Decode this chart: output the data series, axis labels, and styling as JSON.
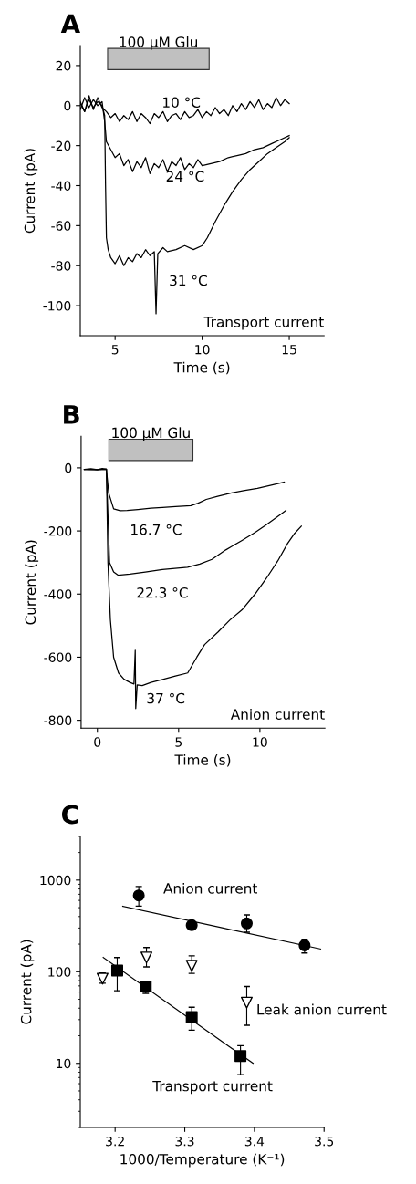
{
  "chart_data": [
    {
      "type": "line",
      "title": "A",
      "xlabel": "Time (s)",
      "ylabel": "Current (pA)",
      "xlim": [
        3,
        17
      ],
      "ylim": [
        -115,
        30
      ],
      "xticks": [
        5,
        10,
        15
      ],
      "yticks": [
        -100,
        -80,
        -60,
        -40,
        -20,
        0,
        20
      ],
      "grid": false,
      "legend": false,
      "marker": "none",
      "line_style": "solid",
      "bands": [
        {
          "axis": "x",
          "from": 4.57,
          "to": 10.4,
          "label": "100 µM Glu",
          "color": "#c0c0c0"
        }
      ],
      "annotations": [
        "Transport current"
      ],
      "series": [
        {
          "name": "10 °C",
          "color": "#000000",
          "x": [
            3.0,
            3.25,
            3.5,
            3.75,
            4.0,
            4.25,
            4.5,
            4.75,
            5.0,
            5.25,
            5.5,
            5.75,
            6.0,
            6.25,
            6.5,
            6.75,
            7.0,
            7.25,
            7.5,
            7.75,
            8.0,
            8.25,
            8.5,
            8.75,
            9.0,
            9.25,
            9.5,
            9.75,
            10.0,
            10.25,
            10.5,
            10.75,
            11.0,
            11.25,
            11.5,
            11.75,
            12.0,
            12.25,
            12.5,
            12.75,
            13.0,
            13.25,
            13.5,
            13.75,
            14.0,
            14.25,
            14.5,
            14.75,
            15.0
          ],
          "values": [
            2,
            -3,
            5,
            -2,
            4,
            -1,
            -3,
            -6,
            -4,
            -8,
            -5,
            -7,
            -3,
            -8,
            -4,
            -6,
            -9,
            -4,
            -6,
            -3,
            -8,
            -5,
            -4,
            -7,
            -3,
            -6,
            -5,
            -2,
            -6,
            -3,
            -5,
            -1,
            -4,
            -2,
            -5,
            0,
            -3,
            1,
            -2,
            2,
            -1,
            3,
            -2,
            1,
            -1,
            4,
            0,
            3,
            1
          ]
        },
        {
          "name": "24 °C",
          "color": "#000000",
          "x": [
            3.0,
            3.25,
            3.5,
            3.75,
            4.0,
            4.25,
            4.4,
            4.5,
            4.75,
            5.0,
            5.25,
            5.5,
            5.75,
            6.0,
            6.25,
            6.5,
            6.75,
            7.0,
            7.25,
            7.5,
            7.75,
            8.0,
            8.25,
            8.5,
            8.75,
            9.0,
            9.25,
            9.5,
            9.75,
            10.0,
            10.5,
            11.0,
            11.5,
            12.0,
            12.5,
            13.0,
            13.5,
            14.0,
            14.5,
            15.0
          ],
          "values": [
            -2,
            4,
            -1,
            3,
            0,
            2,
            -8,
            -18,
            -22,
            -26,
            -24,
            -30,
            -27,
            -33,
            -28,
            -31,
            -26,
            -34,
            -29,
            -31,
            -27,
            -33,
            -28,
            -30,
            -26,
            -32,
            -29,
            -31,
            -27,
            -30,
            -29,
            -28,
            -26,
            -25,
            -24,
            -22,
            -21,
            -19,
            -17,
            -15
          ]
        },
        {
          "name": "31 °C",
          "color": "#000000",
          "x": [
            3.0,
            3.25,
            3.5,
            3.75,
            4.0,
            4.25,
            4.4,
            4.45,
            4.5,
            4.6,
            4.75,
            5.0,
            5.25,
            5.5,
            5.75,
            6.0,
            6.25,
            6.5,
            6.75,
            7.0,
            7.25,
            7.35,
            7.45,
            7.75,
            8.0,
            8.5,
            9.0,
            9.5,
            10.0,
            10.3,
            10.75,
            11.25,
            11.75,
            12.25,
            12.75,
            13.25,
            13.75,
            14.25,
            14.75,
            15.0
          ],
          "values": [
            1,
            -3,
            3,
            -1,
            2,
            0,
            -5,
            -40,
            -66,
            -72,
            -76,
            -79,
            -75,
            -80,
            -76,
            -78,
            -74,
            -76,
            -72,
            -75,
            -73,
            -104,
            -74,
            -71,
            -73,
            -72,
            -70,
            -72,
            -70,
            -66,
            -58,
            -50,
            -43,
            -37,
            -32,
            -28,
            -24,
            -21,
            -18,
            -16
          ]
        }
      ]
    },
    {
      "type": "line",
      "title": "B",
      "xlabel": "Time (s)",
      "ylabel": "Current (pA)",
      "xlim": [
        -1,
        14
      ],
      "ylim": [
        -825,
        100
      ],
      "xticks": [
        0,
        5,
        10
      ],
      "yticks": [
        -800,
        -600,
        -400,
        -200,
        0
      ],
      "grid": false,
      "legend": false,
      "marker": "none",
      "line_style": "solid",
      "bands": [
        {
          "axis": "x",
          "from": 0.71,
          "to": 5.88,
          "label": "100 µM Glu",
          "color": "#c0c0c0"
        }
      ],
      "annotations": [
        "Anion current"
      ],
      "series": [
        {
          "name": "16.7 °C",
          "color": "#000000",
          "x": [
            -0.8,
            -0.4,
            0,
            0.3,
            0.55,
            0.7,
            1.0,
            1.4,
            1.83,
            2.5,
            3.3,
            4.0,
            4.8,
            5.75,
            6.2,
            6.7,
            7.4,
            8.2,
            9.0,
            9.85,
            10.7,
            11.5
          ],
          "values": [
            -5,
            -3,
            -6,
            -2,
            -4,
            -80,
            -130,
            -136,
            -135,
            -132,
            -128,
            -126,
            -123,
            -120,
            -112,
            -100,
            -90,
            -80,
            -72,
            -65,
            -55,
            -45
          ]
        },
        {
          "name": "22.3 °C",
          "color": "#000000",
          "x": [
            -0.8,
            0,
            0.55,
            0.65,
            0.75,
            1.0,
            1.27,
            2.0,
            2.95,
            4.0,
            5.55,
            6.3,
            7.05,
            7.9,
            8.9,
            9.7,
            10.4,
            11.0,
            11.6
          ],
          "values": [
            -5,
            -6,
            -4,
            -150,
            -300,
            -330,
            -340,
            -337,
            -330,
            -322,
            -315,
            -305,
            -290,
            -260,
            -230,
            -205,
            -180,
            -158,
            -135
          ]
        },
        {
          "name": "37 °C",
          "color": "#000000",
          "x": [
            -0.8,
            0,
            0.56,
            0.65,
            0.8,
            1.0,
            1.3,
            1.64,
            2.0,
            2.25,
            2.33,
            2.36,
            2.45,
            2.76,
            3.3,
            4.07,
            4.8,
            5.56,
            6.12,
            6.6,
            7.43,
            8.2,
            8.9,
            9.7,
            10.4,
            11.1,
            11.7,
            12.1,
            12.55
          ],
          "values": [
            -5,
            -6,
            -4,
            -300,
            -480,
            -600,
            -650,
            -670,
            -680,
            -685,
            -578,
            -763,
            -688,
            -690,
            -680,
            -670,
            -660,
            -650,
            -600,
            -560,
            -520,
            -480,
            -450,
            -400,
            -350,
            -295,
            -240,
            -210,
            -185
          ]
        }
      ]
    },
    {
      "type": "scatter",
      "title": "C",
      "xlabel": "1000/Temperature (K⁻¹)",
      "ylabel": "Current (pA)",
      "xlim": [
        3.15,
        3.5
      ],
      "ylim": [
        2,
        3000
      ],
      "xticks": [
        3.2,
        3.3,
        3.4,
        3.5
      ],
      "yticks": [
        10,
        100,
        1000
      ],
      "log": "y",
      "grid": false,
      "legend": false,
      "series": [
        {
          "name": "Anion current",
          "type": "scatter",
          "marker": "circle",
          "color": "#000000",
          "x": [
            3.234,
            3.31,
            3.389,
            3.472
          ],
          "values": [
            680,
            322,
            337,
            194
          ],
          "errors": [
            [
              520,
              850
            ],
            [
              290,
              360
            ],
            [
              270,
              417
            ],
            [
              160,
              226
            ]
          ]
        },
        {
          "name": "Transport current",
          "type": "scatter",
          "marker": "square",
          "color": "#000000",
          "x": [
            3.203,
            3.244,
            3.31,
            3.38
          ],
          "values": [
            103,
            69,
            32,
            12
          ],
          "errors": [
            [
              62,
              143
            ],
            [
              58,
              79
            ],
            [
              23,
              41
            ],
            [
              7.5,
              15.6
            ]
          ]
        },
        {
          "name": "Leak anion current",
          "type": "scatter",
          "marker": "triangle",
          "color": "#000000",
          "x": [
            3.182,
            3.245,
            3.31,
            3.389
          ],
          "values": [
            84,
            143,
            116,
            46
          ],
          "errors": [
            [
              75,
              97
            ],
            [
              113,
              184
            ],
            [
              96,
              149
            ],
            [
              26,
              69
            ]
          ]
        },
        {
          "type": "line",
          "marker": "none",
          "line_style": "solid",
          "color": "#000000",
          "x": [
            3.211,
            3.495
          ],
          "values": [
            517,
            177
          ]
        },
        {
          "type": "line",
          "marker": "none",
          "line_style": "solid",
          "color": "#000000",
          "x": [
            3.183,
            3.398
          ],
          "values": [
            143,
            10
          ]
        }
      ]
    }
  ]
}
